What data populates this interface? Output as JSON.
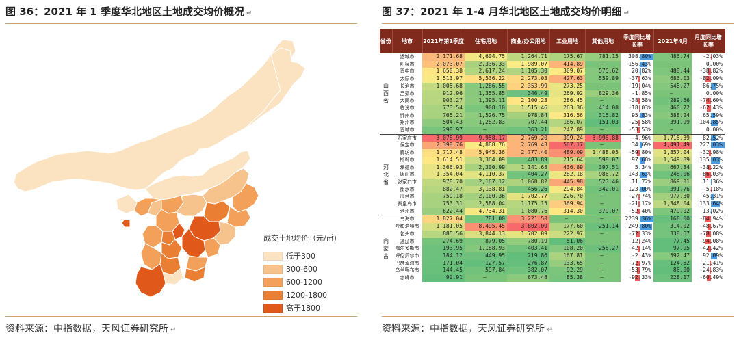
{
  "left": {
    "title": "图 36：2021 年 1 季度华北地区土地成交均价概况",
    "source": "资料来源：中指数据，天风证券研究所",
    "legend_title": "成交土地均价（元/㎡）",
    "legend": [
      {
        "label": "低于300",
        "color": "#fbe2c0"
      },
      {
        "label": "300-600",
        "color": "#f7c38d"
      },
      {
        "label": "600-1200",
        "color": "#f2a05a"
      },
      {
        "label": "1200-1800",
        "color": "#ea7f34"
      },
      {
        "label": "高于1800",
        "color": "#e0591a"
      }
    ]
  },
  "right": {
    "title": "图 37：2021 年 1-4 月华北地区土地成交均价明细",
    "source": "资料来源：中指数据，天风证券研究所",
    "headers": [
      "省份",
      "地市",
      "2021年第1季度",
      "住宅用地",
      "商业/办公用地",
      "工业用地",
      "其他用地",
      "季度同比增长率",
      "2021年4月",
      "月度同比增长率"
    ],
    "groups": [
      {
        "province": "山西省",
        "rows": [
          [
            "运城市",
            "2,171.68",
            "4,604.75",
            "1,264.71",
            "175.67",
            "781.15",
            "308.80%",
            "486.74",
            "-2.03%"
          ],
          [
            "阳泉市",
            "2,073.07",
            "2,336.33",
            "1,989.07",
            "414.89",
            "–",
            "156.43%",
            "–",
            "0.00%"
          ],
          [
            "晋中市",
            "1,650.38",
            "2,617.24",
            "1,105.30",
            "309.07",
            "575.62",
            "20.82%",
            "488.44",
            "-38.82%"
          ],
          [
            "太原市",
            "1,513.97",
            "5,536.22",
            "2,273.03",
            "427.63",
            "559.89",
            "-37.63%",
            "686.03",
            "-82.09%"
          ],
          [
            "长治市",
            "1,005.68",
            "1,286.55",
            "2,353.99",
            "273.25",
            "–",
            "-19.04%",
            "548.27",
            "86.75%"
          ],
          [
            "吕梁市",
            "912.96",
            "1,355.85",
            "346.49",
            "269.92",
            "829.36",
            "-1.85%",
            "–",
            "0.00%"
          ],
          [
            "大同市",
            "903.27",
            "1,395.11",
            "2,100.23",
            "286.45",
            "–",
            "-38.58%",
            "289.56",
            "-74.60%"
          ],
          [
            "临汾市",
            "773.54",
            "908.10",
            "1,515.46",
            "263.36",
            "414.08",
            "-18.03%",
            "460.72",
            "-62.43%"
          ],
          [
            "忻州市",
            "765.21",
            "1,526.75",
            "978.84",
            "316.56",
            "315.82",
            "95.83%",
            "588.24",
            "65.59%"
          ],
          [
            "朔州市",
            "504.43",
            "1,282.83",
            "707.44",
            "186.07",
            "151.03",
            "-25.58%",
            "391.99",
            "104.85%"
          ],
          [
            "晋城市",
            "298.97",
            "–",
            "363.21",
            "247.89",
            "–",
            "-53.53%",
            "–",
            "0.00%"
          ]
        ]
      },
      {
        "province": "河北省",
        "rows": [
          [
            "石家庄市",
            "3,078.99",
            "9,958.17",
            "2,769.20",
            "399.24",
            "3,996.88",
            "-4.96%",
            "1,715.39",
            "82.52%"
          ],
          [
            "保定市",
            "2,398.76",
            "4,888.76",
            "2,769.43",
            "567.17",
            "–",
            "34.69%",
            "4,491.49",
            "227.03%"
          ],
          [
            "廊坊市",
            "1,717.48",
            "5,945.36",
            "2,777.40",
            "489.09",
            "1,488.05",
            "-59.80%",
            "1,857.04",
            "-32.98%"
          ],
          [
            "邯郸市",
            "1,614.51",
            "3,364.09",
            "483.89",
            "215.64",
            "598.07",
            "97.68%",
            "1,549.89",
            "135.03%"
          ],
          [
            "承德市",
            "1,366.93",
            "2,300.99",
            "1,141.68",
            "436.89",
            "397.51",
            "5.34%",
            "667.84",
            "-38.22%"
          ],
          [
            "唐山市",
            "1,354.04",
            "4,110.37",
            "404.27",
            "282.18",
            "986.72",
            "143.63%",
            "248.06",
            "-86.03%"
          ],
          [
            "张家口市",
            "978.70",
            "2,167.12",
            "1,068.82",
            "445.98",
            "523.46",
            "11.72%",
            "869.01",
            "11.36%"
          ],
          [
            "衡水市",
            "882.47",
            "3,138.81",
            "456.26",
            "294.84",
            "342.01",
            "123.00%",
            "391.76",
            "-5.18%"
          ],
          [
            "邢台市",
            "759.18",
            "2,100.36",
            "1,702.77",
            "226.70",
            "–",
            "-27.74%",
            "977.30",
            "45.31%"
          ],
          [
            "秦皇岛市",
            "753.31",
            "2,588.04",
            "1,175.15",
            "369.94",
            "–",
            "-21.17%",
            "1,348.04",
            "133.64%"
          ],
          [
            "沧州市",
            "622.44",
            "4,734.31",
            "1,080.76",
            "314.30",
            "379.07",
            "-52.40%",
            "479.02",
            "13.02%"
          ]
        ]
      },
      {
        "province": "内蒙古",
        "rows": [
          [
            "乌海市",
            "1,827.04",
            "781.00",
            "3,221.50",
            "–",
            "–",
            "2239.36%",
            "168.00",
            "-84.94%"
          ],
          [
            "呼和浩特市",
            "1,181.05",
            "8,495.45",
            "3,802.09",
            "177.60",
            "251.14",
            "249.80%",
            "314.02",
            "-48.67%"
          ],
          [
            "包头市",
            "885.56",
            "3,844.13",
            "1,702.09",
            "222.97",
            "–",
            "-72.33%",
            "338.67",
            "-78.08%"
          ],
          [
            "通辽市",
            "274.69",
            "879.05",
            "780.19",
            "51.06",
            "–",
            "-12.24%",
            "77.45",
            "-94.08%"
          ],
          [
            "鄂尔多斯市",
            "193.95",
            "1,188.93",
            "403.41",
            "108.20",
            "256.27",
            "-42.14%",
            "97.95",
            "-42.42%"
          ],
          [
            "呼伦贝尔市",
            "184.12",
            "449.95",
            "219.86",
            "167.81",
            "–",
            "-2.43%",
            "592.47",
            "92.09%"
          ],
          [
            "巴彦淖尔市",
            "171.04",
            "127.57",
            "276.87",
            "133.65",
            "–",
            "-72.97%",
            "124.52",
            "-21.41%"
          ],
          [
            "乌兰察布市",
            "144.45",
            "597.84",
            "382.07",
            "92.29",
            "–",
            "-53.79%",
            "86.00",
            "-24.83%"
          ],
          [
            "赤峰市",
            "90.91",
            "–",
            "673.48",
            "85.38",
            "–",
            "-92.33%",
            "228.17",
            "-60.49%"
          ]
        ]
      }
    ]
  }
}
